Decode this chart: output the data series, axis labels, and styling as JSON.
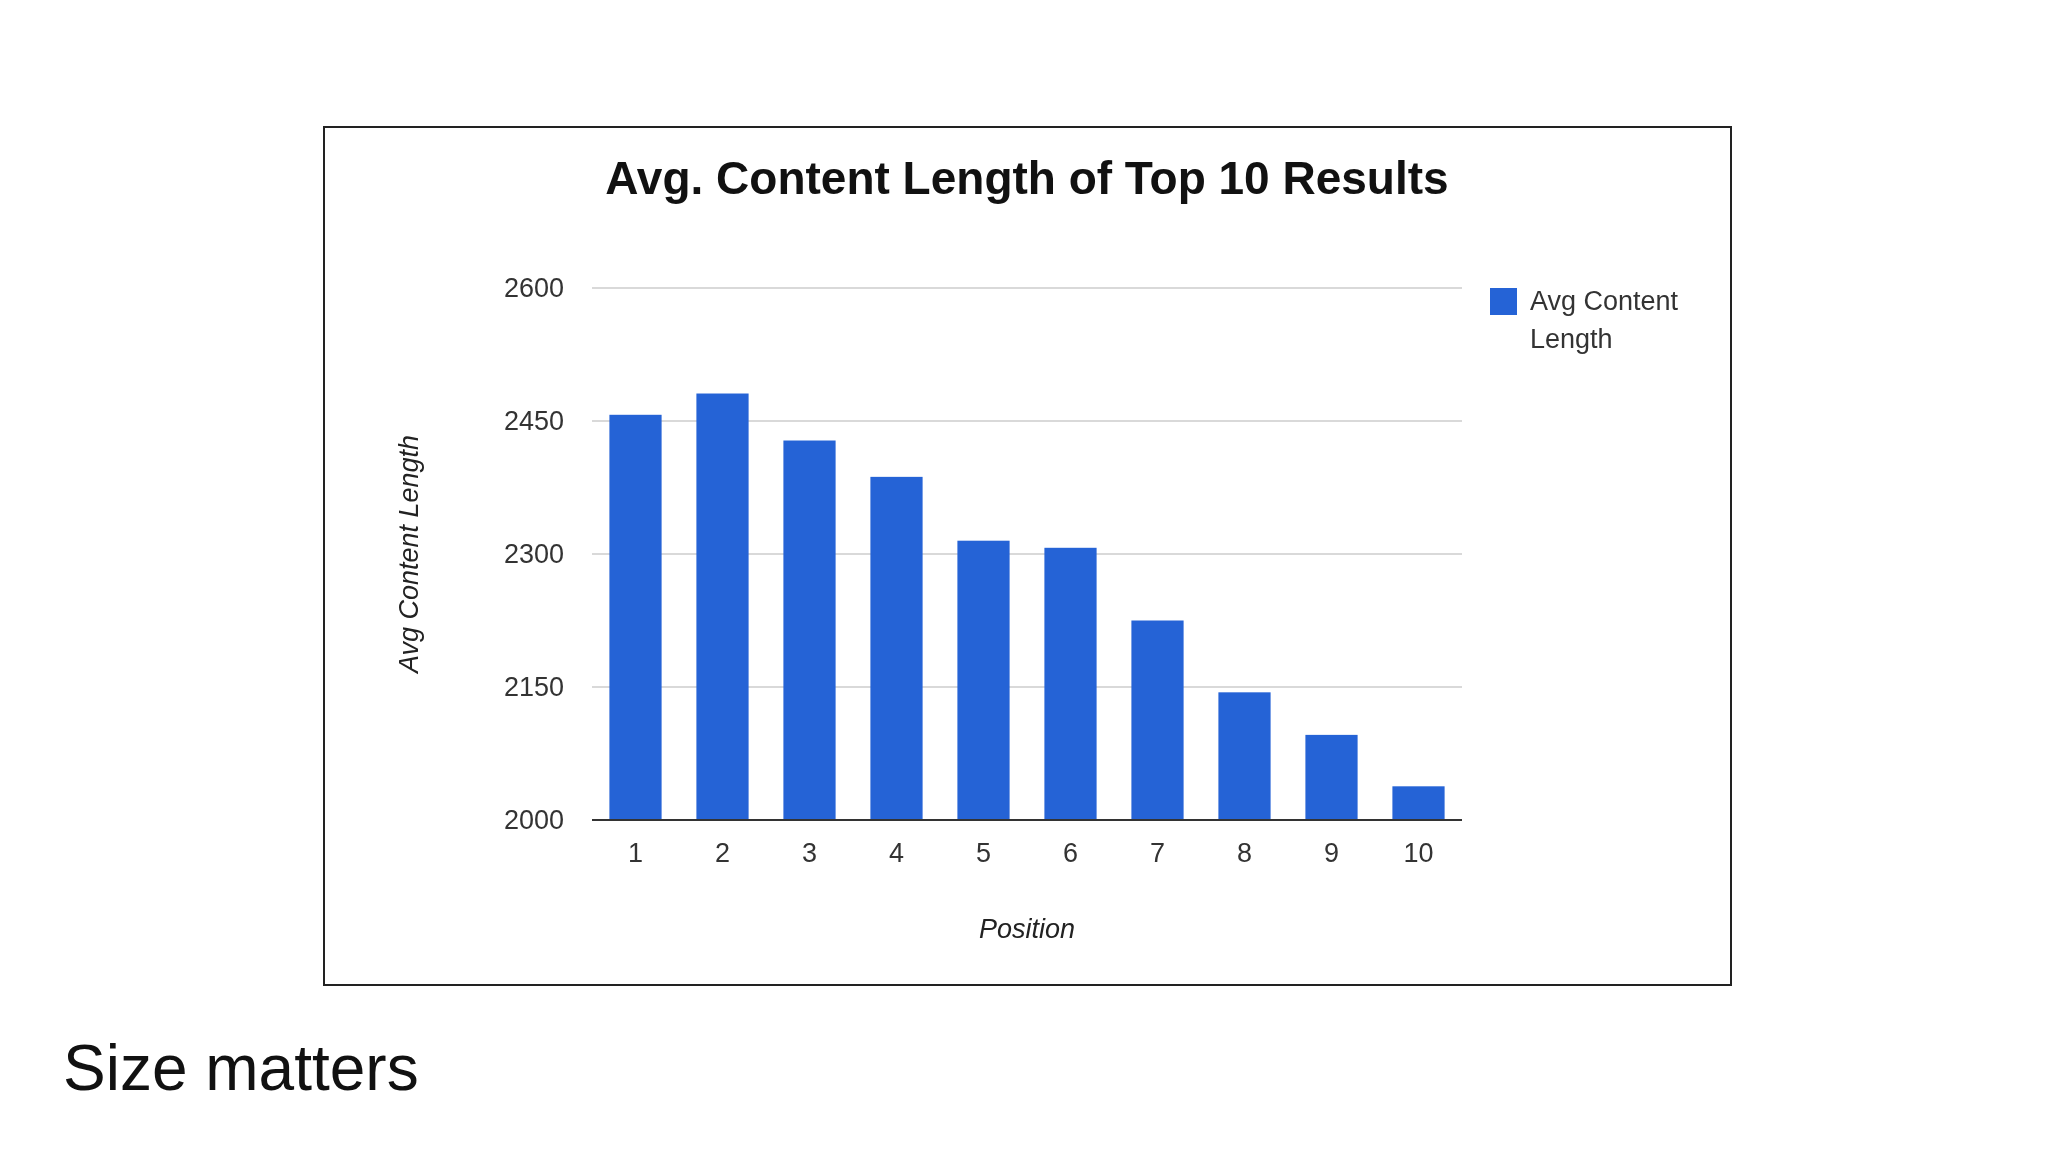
{
  "chart_data": {
    "type": "bar",
    "title": "Avg. Content Length of Top 10 Results",
    "xlabel": "Position",
    "ylabel": "Avg Content Length",
    "categories": [
      "1",
      "2",
      "3",
      "4",
      "5",
      "6",
      "7",
      "8",
      "9",
      "10"
    ],
    "series": [
      {
        "name": "Avg Content Length",
        "color": "#2563d6",
        "values": [
          2457,
          2481,
          2428,
          2387,
          2315,
          2307,
          2225,
          2144,
          2096,
          2038
        ]
      }
    ],
    "ylim": [
      2000,
      2600
    ],
    "yticks": [
      2000,
      2150,
      2300,
      2450,
      2600
    ],
    "grid": "y",
    "legend": "top right",
    "annotations": [
      "Size matters"
    ]
  }
}
